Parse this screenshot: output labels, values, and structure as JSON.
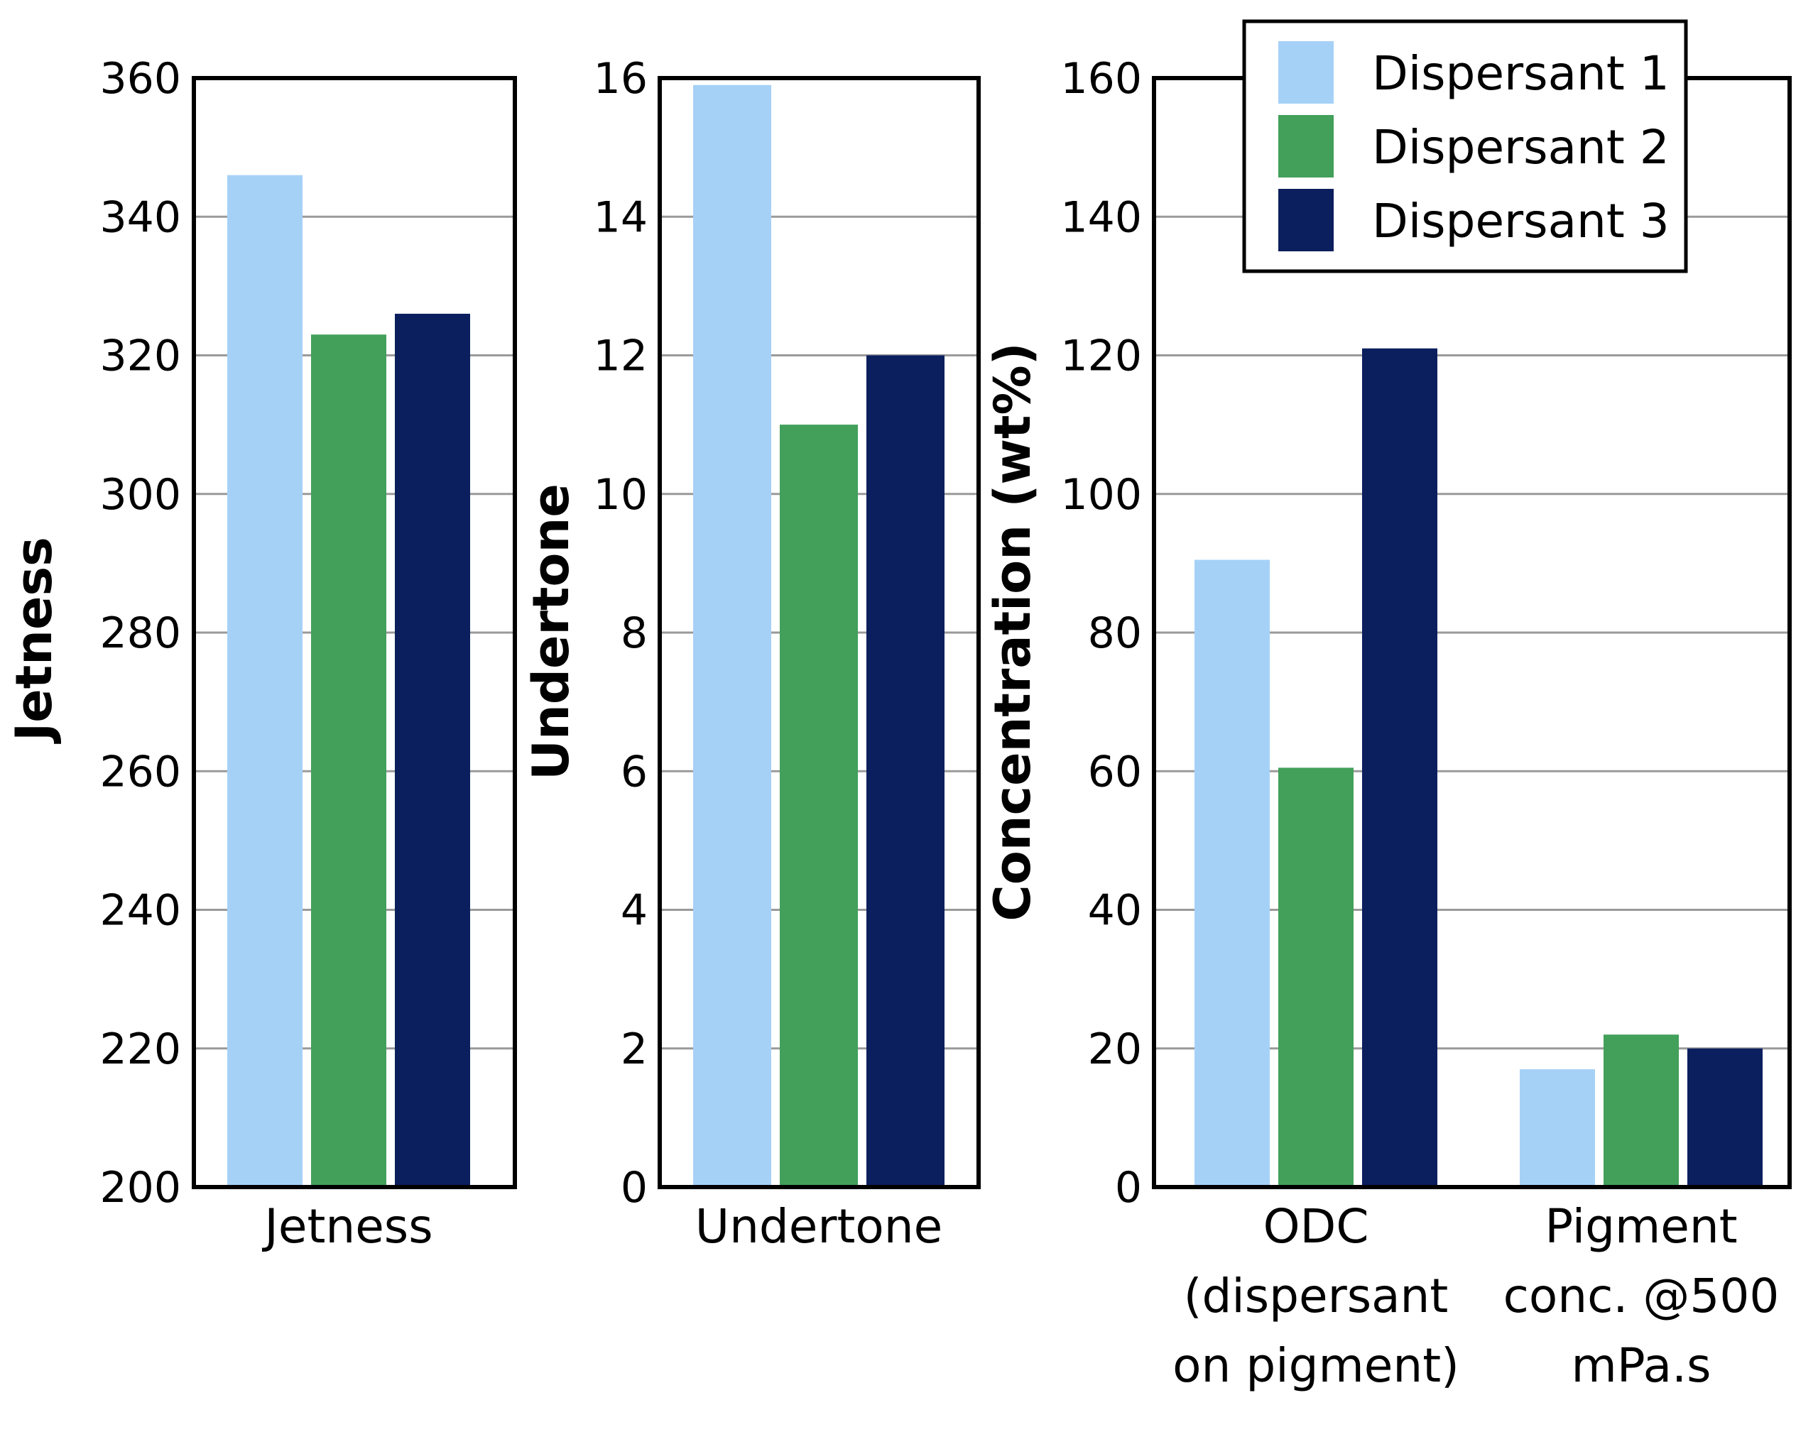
{
  "chart_data": [
    {
      "type": "bar",
      "title": "",
      "xlabel": "",
      "ylabel": "Jetness",
      "ylim": [
        200,
        360
      ],
      "yticks": [
        "200",
        "220",
        "240",
        "260",
        "280",
        "300",
        "320",
        "340",
        "360"
      ],
      "categories": [
        [
          "Jetness"
        ]
      ],
      "series": [
        {
          "name": "Dispersant 1",
          "values": [
            346
          ]
        },
        {
          "name": "Dispersant 2",
          "values": [
            323
          ]
        },
        {
          "name": "Dispersant 3",
          "values": [
            326
          ]
        }
      ]
    },
    {
      "type": "bar",
      "title": "",
      "xlabel": "",
      "ylabel": "Undertone",
      "ylim": [
        0,
        16
      ],
      "yticks": [
        "0",
        "2",
        "4",
        "6",
        "8",
        "10",
        "12",
        "14",
        "16"
      ],
      "categories": [
        [
          "Undertone"
        ]
      ],
      "series": [
        {
          "name": "Dispersant 1",
          "values": [
            15.9
          ]
        },
        {
          "name": "Dispersant 2",
          "values": [
            11
          ]
        },
        {
          "name": "Dispersant 3",
          "values": [
            12
          ]
        }
      ]
    },
    {
      "type": "bar",
      "title": "",
      "xlabel": "",
      "ylabel": "Concentration (wt%)",
      "ylim": [
        0,
        160
      ],
      "yticks": [
        "0",
        "20",
        "40",
        "60",
        "80",
        "100",
        "120",
        "140",
        "160"
      ],
      "categories": [
        [
          "ODC",
          "(dispersant",
          "on pigment)"
        ],
        [
          "Pigment",
          "conc. @500",
          "mPa.s"
        ]
      ],
      "series": [
        {
          "name": "Dispersant 1",
          "values": [
            90.5,
            17
          ]
        },
        {
          "name": "Dispersant 2",
          "values": [
            60.5,
            22
          ]
        },
        {
          "name": "Dispersant 3",
          "values": [
            121,
            20
          ]
        }
      ]
    }
  ],
  "legend": {
    "position": "top-right",
    "entries": [
      "Dispersant 1",
      "Dispersant 2",
      "Dispersant 3"
    ]
  },
  "colors": {
    "Dispersant 1": "#a6d1f7",
    "Dispersant 2": "#42a05a",
    "Dispersant 3": "#0b1f5e"
  }
}
